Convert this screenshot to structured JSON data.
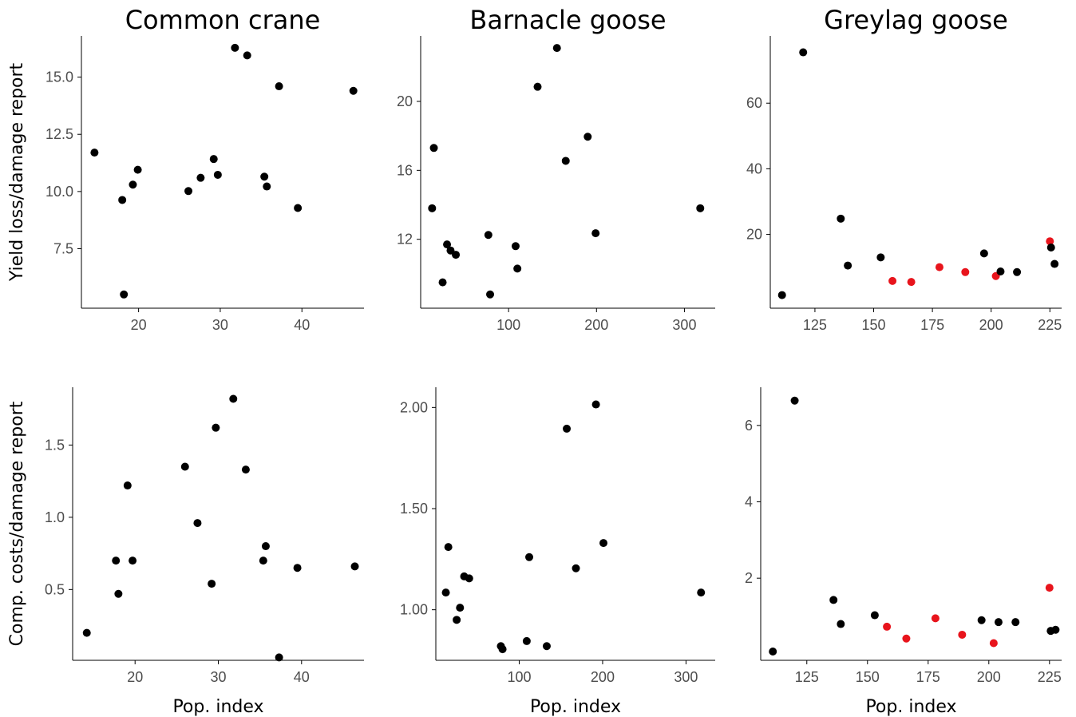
{
  "chart_data": [
    {
      "type": "scatter",
      "title": "Common crane",
      "xlabel": "",
      "ylabel": "Yield loss/damage report",
      "xlim": [
        13.0,
        47.6
      ],
      "ylim": [
        4.9,
        16.8
      ],
      "xticks": [
        20,
        30,
        40
      ],
      "xtick_labels": [
        "20",
        "30",
        "40"
      ],
      "yticks": [
        7.5,
        10.0,
        12.5,
        15.0
      ],
      "ytick_labels": [
        "7.5",
        "10.0",
        "12.5",
        "15.0"
      ],
      "grid": false,
      "points": [
        {
          "x": 14.6,
          "y": 11.7,
          "color": "#000000"
        },
        {
          "x": 18.0,
          "y": 9.63,
          "color": "#000000"
        },
        {
          "x": 18.2,
          "y": 5.5,
          "color": "#000000"
        },
        {
          "x": 19.3,
          "y": 10.3,
          "color": "#000000"
        },
        {
          "x": 19.9,
          "y": 10.95,
          "color": "#000000"
        },
        {
          "x": 26.1,
          "y": 10.02,
          "color": "#000000"
        },
        {
          "x": 27.6,
          "y": 10.6,
          "color": "#000000"
        },
        {
          "x": 29.2,
          "y": 11.42,
          "color": "#000000"
        },
        {
          "x": 29.7,
          "y": 10.73,
          "color": "#000000"
        },
        {
          "x": 31.8,
          "y": 16.28,
          "color": "#000000"
        },
        {
          "x": 33.3,
          "y": 15.95,
          "color": "#000000"
        },
        {
          "x": 35.4,
          "y": 10.65,
          "color": "#000000"
        },
        {
          "x": 35.7,
          "y": 10.22,
          "color": "#000000"
        },
        {
          "x": 37.2,
          "y": 14.6,
          "color": "#000000"
        },
        {
          "x": 39.5,
          "y": 9.28,
          "color": "#000000"
        },
        {
          "x": 46.3,
          "y": 14.4,
          "color": "#000000"
        }
      ]
    },
    {
      "type": "scatter",
      "title": "Barnacle goose",
      "xlabel": "",
      "ylabel": "",
      "xlim": [
        0,
        335
      ],
      "ylim": [
        8.0,
        23.8
      ],
      "xticks": [
        100,
        200,
        300
      ],
      "xtick_labels": [
        "100",
        "200",
        "300"
      ],
      "yticks": [
        12,
        16,
        20
      ],
      "ytick_labels": [
        "12",
        "16",
        "20"
      ],
      "grid": false,
      "points": [
        {
          "x": 13,
          "y": 13.8,
          "color": "#000000"
        },
        {
          "x": 15,
          "y": 17.3,
          "color": "#000000"
        },
        {
          "x": 25,
          "y": 9.5,
          "color": "#000000"
        },
        {
          "x": 30,
          "y": 11.7,
          "color": "#000000"
        },
        {
          "x": 34,
          "y": 11.35,
          "color": "#000000"
        },
        {
          "x": 40,
          "y": 11.1,
          "color": "#000000"
        },
        {
          "x": 77,
          "y": 12.25,
          "color": "#000000"
        },
        {
          "x": 79,
          "y": 8.8,
          "color": "#000000"
        },
        {
          "x": 108,
          "y": 11.6,
          "color": "#000000"
        },
        {
          "x": 110,
          "y": 10.3,
          "color": "#000000"
        },
        {
          "x": 133,
          "y": 20.85,
          "color": "#000000"
        },
        {
          "x": 155,
          "y": 23.1,
          "color": "#000000"
        },
        {
          "x": 165,
          "y": 16.55,
          "color": "#000000"
        },
        {
          "x": 190,
          "y": 17.95,
          "color": "#000000"
        },
        {
          "x": 199,
          "y": 12.35,
          "color": "#000000"
        },
        {
          "x": 318,
          "y": 13.8,
          "color": "#000000"
        }
      ]
    },
    {
      "type": "scatter",
      "title": "Greylag goose",
      "xlabel": "",
      "ylabel": "",
      "xlim": [
        106,
        230
      ],
      "ylim": [
        -2.5,
        80.5
      ],
      "xticks": [
        125,
        150,
        175,
        200,
        225
      ],
      "xtick_labels": [
        "125",
        "150",
        "175",
        "200",
        "225"
      ],
      "yticks": [
        20,
        40,
        60
      ],
      "ytick_labels": [
        "20",
        "40",
        "60"
      ],
      "grid": false,
      "points": [
        {
          "x": 111,
          "y": 1.5,
          "color": "#000000"
        },
        {
          "x": 120,
          "y": 75.5,
          "color": "#000000"
        },
        {
          "x": 136,
          "y": 24.8,
          "color": "#000000"
        },
        {
          "x": 139,
          "y": 10.5,
          "color": "#000000"
        },
        {
          "x": 153,
          "y": 13.0,
          "color": "#000000"
        },
        {
          "x": 158,
          "y": 5.8,
          "color": "#e8141c"
        },
        {
          "x": 166,
          "y": 5.5,
          "color": "#e8141c"
        },
        {
          "x": 178,
          "y": 10.0,
          "color": "#e8141c"
        },
        {
          "x": 189,
          "y": 8.5,
          "color": "#e8141c"
        },
        {
          "x": 197,
          "y": 14.2,
          "color": "#000000"
        },
        {
          "x": 202,
          "y": 7.3,
          "color": "#e8141c"
        },
        {
          "x": 204,
          "y": 8.7,
          "color": "#000000"
        },
        {
          "x": 211,
          "y": 8.5,
          "color": "#000000"
        },
        {
          "x": 225,
          "y": 17.9,
          "color": "#e8141c"
        },
        {
          "x": 225.5,
          "y": 16.0,
          "color": "#000000"
        },
        {
          "x": 227,
          "y": 11.0,
          "color": "#000000"
        }
      ]
    },
    {
      "type": "scatter",
      "title": "",
      "xlabel": "Pop. index",
      "ylabel": "Comp. costs/damage report",
      "xlim": [
        12.5,
        47.5
      ],
      "ylim": [
        0.01,
        1.9
      ],
      "xticks": [
        20,
        30,
        40
      ],
      "xtick_labels": [
        "20",
        "30",
        "40"
      ],
      "yticks": [
        0.5,
        1.0,
        1.5
      ],
      "ytick_labels": [
        "0.5",
        "1.0",
        "1.5"
      ],
      "grid": false,
      "points": [
        {
          "x": 14.2,
          "y": 0.2,
          "color": "#000000"
        },
        {
          "x": 17.7,
          "y": 0.7,
          "color": "#000000"
        },
        {
          "x": 18.0,
          "y": 0.47,
          "color": "#000000"
        },
        {
          "x": 19.1,
          "y": 1.22,
          "color": "#000000"
        },
        {
          "x": 19.7,
          "y": 0.7,
          "color": "#000000"
        },
        {
          "x": 26.0,
          "y": 1.35,
          "color": "#000000"
        },
        {
          "x": 27.5,
          "y": 0.96,
          "color": "#000000"
        },
        {
          "x": 29.2,
          "y": 0.54,
          "color": "#000000"
        },
        {
          "x": 29.7,
          "y": 1.62,
          "color": "#000000"
        },
        {
          "x": 31.8,
          "y": 1.82,
          "color": "#000000"
        },
        {
          "x": 33.3,
          "y": 1.33,
          "color": "#000000"
        },
        {
          "x": 35.4,
          "y": 0.7,
          "color": "#000000"
        },
        {
          "x": 35.7,
          "y": 0.8,
          "color": "#000000"
        },
        {
          "x": 37.3,
          "y": 0.03,
          "color": "#000000"
        },
        {
          "x": 39.5,
          "y": 0.65,
          "color": "#000000"
        },
        {
          "x": 46.4,
          "y": 0.66,
          "color": "#000000"
        }
      ]
    },
    {
      "type": "scatter",
      "title": "",
      "xlabel": "Pop. index",
      "ylabel": "",
      "xlim": [
        0,
        335
      ],
      "ylim": [
        0.75,
        2.1
      ],
      "xticks": [
        100,
        200,
        300
      ],
      "xtick_labels": [
        "100",
        "200",
        "300"
      ],
      "yticks": [
        1.0,
        1.5,
        2.0
      ],
      "ytick_labels": [
        "1.00",
        "1.50",
        "2.00"
      ],
      "grid": false,
      "points": [
        {
          "x": 12,
          "y": 1.085,
          "color": "#000000"
        },
        {
          "x": 15,
          "y": 1.31,
          "color": "#000000"
        },
        {
          "x": 25,
          "y": 0.95,
          "color": "#000000"
        },
        {
          "x": 29,
          "y": 1.01,
          "color": "#000000"
        },
        {
          "x": 34,
          "y": 1.165,
          "color": "#000000"
        },
        {
          "x": 40,
          "y": 1.155,
          "color": "#000000"
        },
        {
          "x": 78,
          "y": 0.82,
          "color": "#000000"
        },
        {
          "x": 80,
          "y": 0.805,
          "color": "#000000"
        },
        {
          "x": 109,
          "y": 0.845,
          "color": "#000000"
        },
        {
          "x": 112,
          "y": 1.26,
          "color": "#000000"
        },
        {
          "x": 133,
          "y": 0.82,
          "color": "#000000"
        },
        {
          "x": 157,
          "y": 1.895,
          "color": "#000000"
        },
        {
          "x": 168,
          "y": 1.205,
          "color": "#000000"
        },
        {
          "x": 192,
          "y": 2.015,
          "color": "#000000"
        },
        {
          "x": 201,
          "y": 1.33,
          "color": "#000000"
        },
        {
          "x": 318,
          "y": 1.085,
          "color": "#000000"
        }
      ]
    },
    {
      "type": "scatter",
      "title": "",
      "xlabel": "Pop. index",
      "ylabel": "",
      "xlim": [
        106,
        230
      ],
      "ylim": [
        -0.15,
        7.0
      ],
      "xticks": [
        125,
        150,
        175,
        200,
        225
      ],
      "xtick_labels": [
        "125",
        "150",
        "175",
        "200",
        "225"
      ],
      "yticks": [
        2,
        4,
        6
      ],
      "ytick_labels": [
        "2",
        "4",
        "6"
      ],
      "grid": false,
      "points": [
        {
          "x": 111,
          "y": 0.08,
          "color": "#000000"
        },
        {
          "x": 120,
          "y": 6.65,
          "color": "#000000"
        },
        {
          "x": 136,
          "y": 1.43,
          "color": "#000000"
        },
        {
          "x": 139,
          "y": 0.8,
          "color": "#000000"
        },
        {
          "x": 153,
          "y": 1.03,
          "color": "#000000"
        },
        {
          "x": 158,
          "y": 0.73,
          "color": "#e8141c"
        },
        {
          "x": 166,
          "y": 0.42,
          "color": "#e8141c"
        },
        {
          "x": 178,
          "y": 0.95,
          "color": "#e8141c"
        },
        {
          "x": 189,
          "y": 0.52,
          "color": "#e8141c"
        },
        {
          "x": 197,
          "y": 0.9,
          "color": "#000000"
        },
        {
          "x": 202,
          "y": 0.3,
          "color": "#e8141c"
        },
        {
          "x": 204,
          "y": 0.85,
          "color": "#000000"
        },
        {
          "x": 211,
          "y": 0.85,
          "color": "#000000"
        },
        {
          "x": 225,
          "y": 1.75,
          "color": "#e8141c"
        },
        {
          "x": 225.5,
          "y": 0.62,
          "color": "#000000"
        },
        {
          "x": 227.5,
          "y": 0.65,
          "color": "#000000"
        }
      ]
    }
  ]
}
